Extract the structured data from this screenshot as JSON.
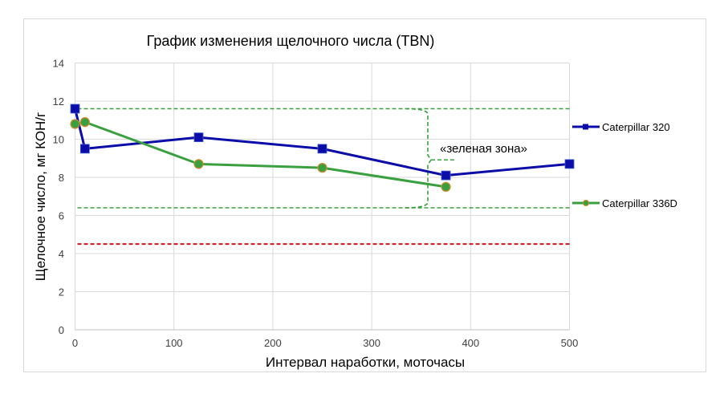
{
  "chart_data": {
    "type": "line",
    "title": "График изменения щелочного числа (TBN)",
    "xlabel": "Интервал наработки, моточасы",
    "ylabel": "Щелочное число, мг КОН/г",
    "xlim": [
      0,
      500
    ],
    "ylim": [
      0,
      14
    ],
    "x_ticks": [
      0,
      100,
      200,
      300,
      400,
      500
    ],
    "y_ticks": [
      0,
      2,
      4,
      6,
      8,
      10,
      12,
      14
    ],
    "grid": true,
    "legend_position": "right",
    "series": [
      {
        "name": "Caterpillar 320",
        "color": "#0c0ca8",
        "marker": "square",
        "x": [
          0,
          10,
          125,
          250,
          375,
          500
        ],
        "y": [
          11.6,
          9.5,
          10.1,
          9.5,
          8.1,
          8.7
        ]
      },
      {
        "name": "Caterpillar 336D",
        "color": "#3aa03f",
        "marker": "circle",
        "marker_edge": "#d08a2a",
        "x": [
          0,
          10,
          125,
          250,
          375
        ],
        "y": [
          10.8,
          10.9,
          8.7,
          8.5,
          7.5
        ]
      }
    ],
    "reference_lines": [
      {
        "name": "green-zone-upper",
        "y": 11.6,
        "color": "#3aa03f",
        "style": "dashed"
      },
      {
        "name": "green-zone-lower",
        "y": 6.4,
        "color": "#3aa03f",
        "style": "dashed"
      },
      {
        "name": "critical-limit",
        "y": 4.5,
        "color": "#d0141c",
        "style": "dashed"
      }
    ],
    "annotations": [
      {
        "text": "«зеленая зона»",
        "x": 367,
        "y": 9.5
      }
    ]
  }
}
